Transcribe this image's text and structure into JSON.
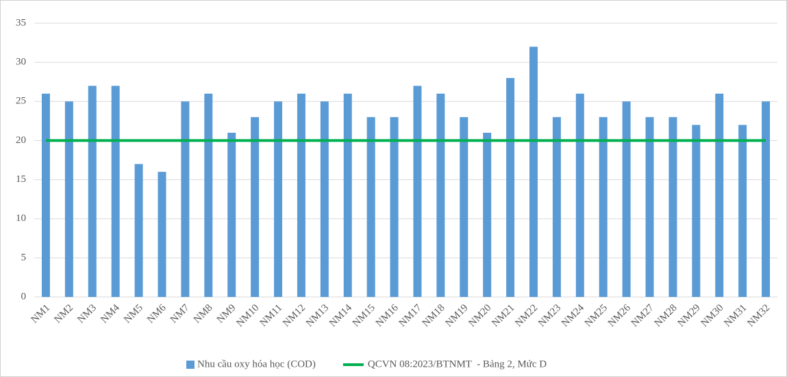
{
  "chart_data": {
    "type": "bar",
    "categories": [
      "NM1",
      "NM2",
      "NM3",
      "NM4",
      "NM5",
      "NM6",
      "NM7",
      "NM8",
      "NM9",
      "NM10",
      "NM11",
      "NM12",
      "NM13",
      "NM14",
      "NM15",
      "NM16",
      "NM17",
      "NM18",
      "NM19",
      "NM20",
      "NM21",
      "NM22",
      "NM23",
      "NM24",
      "NM25",
      "NM26",
      "NM27",
      "NM28",
      "NM29",
      "NM30",
      "NM31",
      "NM32"
    ],
    "series": [
      {
        "name": "Nhu cầu oxy hóa học (COD)",
        "type": "bar",
        "color": "#5b9bd5",
        "values": [
          26,
          25,
          27,
          27,
          17,
          16,
          25,
          26,
          21,
          23,
          25,
          26,
          25,
          26,
          23,
          23,
          27,
          26,
          23,
          21,
          28,
          32,
          23,
          26,
          23,
          25,
          23,
          23,
          22,
          26,
          22,
          25
        ]
      },
      {
        "name": "QCVN 08:2023/BTNMT  - Bảng 2, Mức D",
        "type": "line",
        "color": "#00b050",
        "values": [
          20,
          20,
          20,
          20,
          20,
          20,
          20,
          20,
          20,
          20,
          20,
          20,
          20,
          20,
          20,
          20,
          20,
          20,
          20,
          20,
          20,
          20,
          20,
          20,
          20,
          20,
          20,
          20,
          20,
          20,
          20,
          20
        ]
      }
    ],
    "ylim": [
      0,
      35
    ],
    "yticks": [
      0,
      5,
      10,
      15,
      20,
      25,
      30,
      35
    ],
    "grid": true,
    "legend": "bottom"
  }
}
